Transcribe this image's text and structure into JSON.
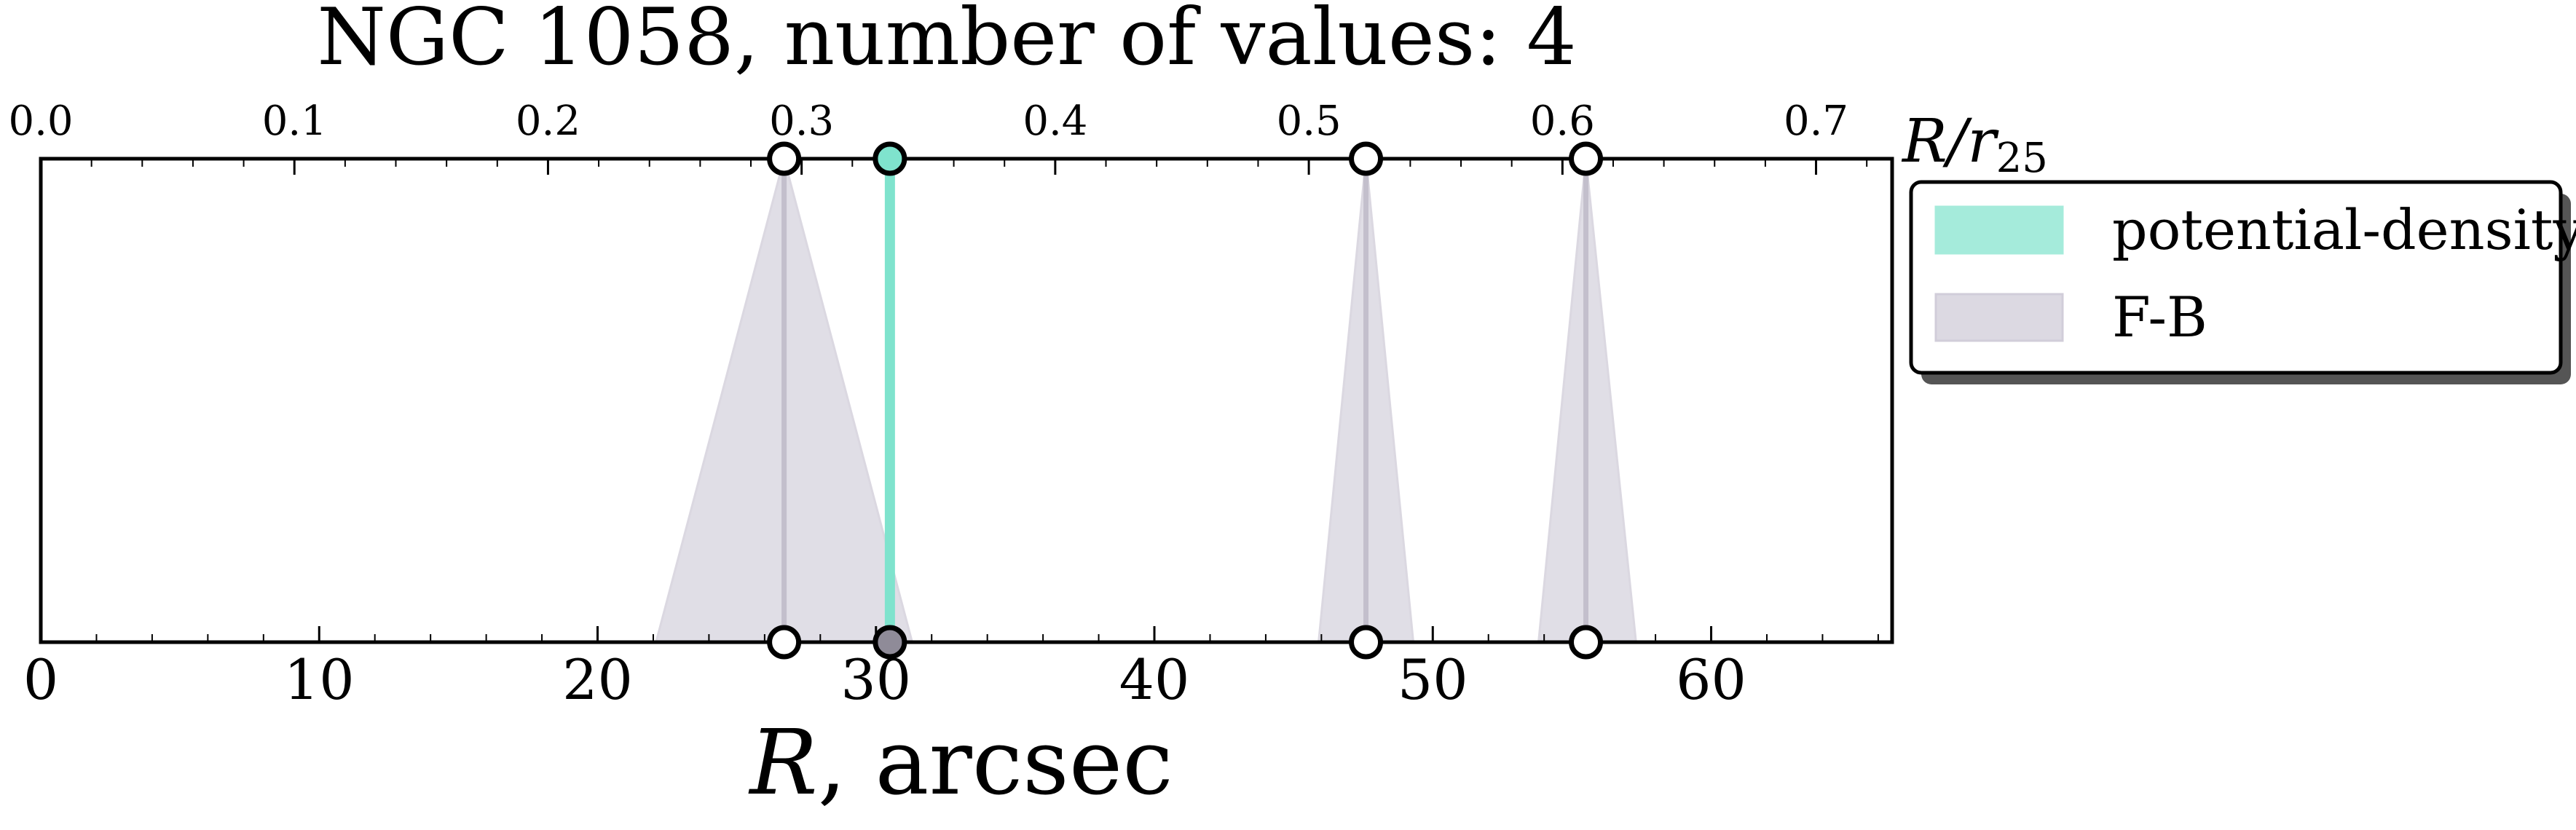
{
  "chart_data": {
    "type": "scatter",
    "title": "NGC 1058, number of values: 4",
    "xlabel": "R, arcsec",
    "xlabel_italic_part": "R",
    "xlabel_rest": ", arcsec",
    "top_axis_label": "R/r25",
    "top_axis_label_main": "R/r",
    "top_axis_label_sub": "25",
    "xlim": [
      0,
      66.5
    ],
    "top_xlim": [
      0.0,
      0.73
    ],
    "x_ticks": [
      "0",
      "10",
      "20",
      "30",
      "40",
      "50",
      "60"
    ],
    "top_ticks": [
      "0.0",
      "0.1",
      "0.2",
      "0.3",
      "0.4",
      "0.5",
      "0.6",
      "0.7"
    ],
    "grid": false,
    "legend_position": "right",
    "series": [
      {
        "name": "potential-density",
        "color": "#7fe3cd",
        "points": [
          {
            "x": 30.5,
            "x_low": 30.5,
            "x_high": 30.5
          }
        ]
      },
      {
        "name": "F-B",
        "color": "#d6d3de",
        "points": [
          {
            "x": 26.7,
            "x_low": 22.1,
            "x_high": 31.3
          },
          {
            "x": 47.6,
            "x_low": 45.9,
            "x_high": 49.3
          },
          {
            "x": 55.5,
            "x_low": 53.8,
            "x_high": 57.3
          }
        ]
      }
    ]
  }
}
